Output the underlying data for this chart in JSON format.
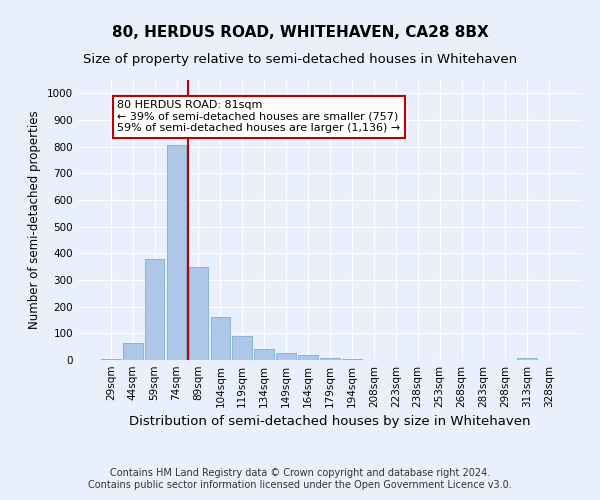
{
  "title": "80, HERDUS ROAD, WHITEHAVEN, CA28 8BX",
  "subtitle": "Size of property relative to semi-detached houses in Whitehaven",
  "xlabel": "Distribution of semi-detached houses by size in Whitehaven",
  "ylabel": "Number of semi-detached properties",
  "footer": "Contains HM Land Registry data © Crown copyright and database right 2024.\nContains public sector information licensed under the Open Government Licence v3.0.",
  "categories": [
    "29sqm",
    "44sqm",
    "59sqm",
    "74sqm",
    "89sqm",
    "104sqm",
    "119sqm",
    "134sqm",
    "149sqm",
    "164sqm",
    "179sqm",
    "194sqm",
    "208sqm",
    "223sqm",
    "238sqm",
    "253sqm",
    "268sqm",
    "283sqm",
    "298sqm",
    "313sqm",
    "328sqm"
  ],
  "values": [
    5,
    65,
    380,
    805,
    350,
    160,
    90,
    40,
    25,
    18,
    8,
    3,
    1,
    1,
    1,
    1,
    1,
    0,
    0,
    8,
    1
  ],
  "bar_color": "#aec6e8",
  "bar_edge_color": "#7aafd4",
  "vline_color": "#c00000",
  "annotation_text": "80 HERDUS ROAD: 81sqm\n← 39% of semi-detached houses are smaller (757)\n59% of semi-detached houses are larger (1,136) →",
  "annotation_box_color": "#ffffff",
  "annotation_box_edge_color": "#c00000",
  "ylim": [
    0,
    1050
  ],
  "yticks": [
    0,
    100,
    200,
    300,
    400,
    500,
    600,
    700,
    800,
    900,
    1000
  ],
  "bg_color": "#eaf0fb",
  "plot_bg_color": "#eaf0fb",
  "title_fontsize": 11,
  "subtitle_fontsize": 9.5,
  "xlabel_fontsize": 9.5,
  "ylabel_fontsize": 8.5,
  "footer_fontsize": 7,
  "tick_fontsize": 7.5,
  "annot_fontsize": 8
}
